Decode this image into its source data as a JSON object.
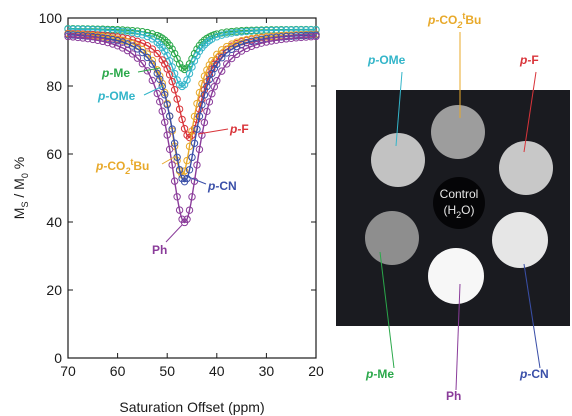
{
  "chart_data": [
    {
      "type": "line",
      "xlabel": "Saturation Offset (ppm)",
      "ylabel_parts": [
        "M",
        "S",
        " / M",
        "0",
        " %"
      ],
      "xlim": [
        70,
        20
      ],
      "ylim": [
        0,
        100
      ],
      "xticks": [
        70,
        60,
        50,
        40,
        30,
        20
      ],
      "yticks": [
        0,
        20,
        40,
        60,
        80,
        100
      ],
      "x_reversed": true,
      "grid": false,
      "series": [
        {
          "name": "p-Me",
          "label_parts": [
            "p-",
            "Me"
          ],
          "color": "#2aa84a",
          "center": 46.5,
          "depth": 12,
          "width": 2.5,
          "base": 97
        },
        {
          "name": "p-OMe",
          "label_parts": [
            "p-",
            "OMe"
          ],
          "color": "#33b5c9",
          "center": 47.0,
          "depth": 17,
          "width": 2.8,
          "base": 97
        },
        {
          "name": "p-F",
          "label_parts": [
            "p-",
            "F"
          ],
          "color": "#d9343a",
          "center": 45.5,
          "depth": 31,
          "width": 3.3,
          "base": 96
        },
        {
          "name": "p-CO2tBu",
          "label_parts": [
            "p-",
            "CO",
            "2",
            "t",
            "Bu"
          ],
          "color": "#e8a92a",
          "center": 47.0,
          "depth": 42,
          "width": 3.0,
          "base": 96
        },
        {
          "name": "p-CN",
          "label_parts": [
            "p-",
            "CN"
          ],
          "color": "#3a4fa8",
          "center": 46.5,
          "depth": 44,
          "width": 3.4,
          "base": 96
        },
        {
          "name": "Ph",
          "label_parts": [
            "Ph"
          ],
          "color": "#8a3c9a",
          "center": 46.5,
          "depth": 56,
          "width": 3.8,
          "base": 96
        }
      ]
    }
  ],
  "phantom": {
    "control_label": "Control",
    "control_sublabel_parts": [
      "(H",
      "2",
      "O)"
    ],
    "wells": [
      {
        "name": "p-CO2tBu",
        "brightness": "#9d9d9d"
      },
      {
        "name": "p-F",
        "brightness": "#c8c8c8"
      },
      {
        "name": "p-CN",
        "brightness": "#e6e6e6"
      },
      {
        "name": "Ph",
        "brightness": "#f7f7f7"
      },
      {
        "name": "p-Me",
        "brightness": "#8e8e8e"
      },
      {
        "name": "p-OMe",
        "brightness": "#c2c2c2"
      }
    ]
  }
}
